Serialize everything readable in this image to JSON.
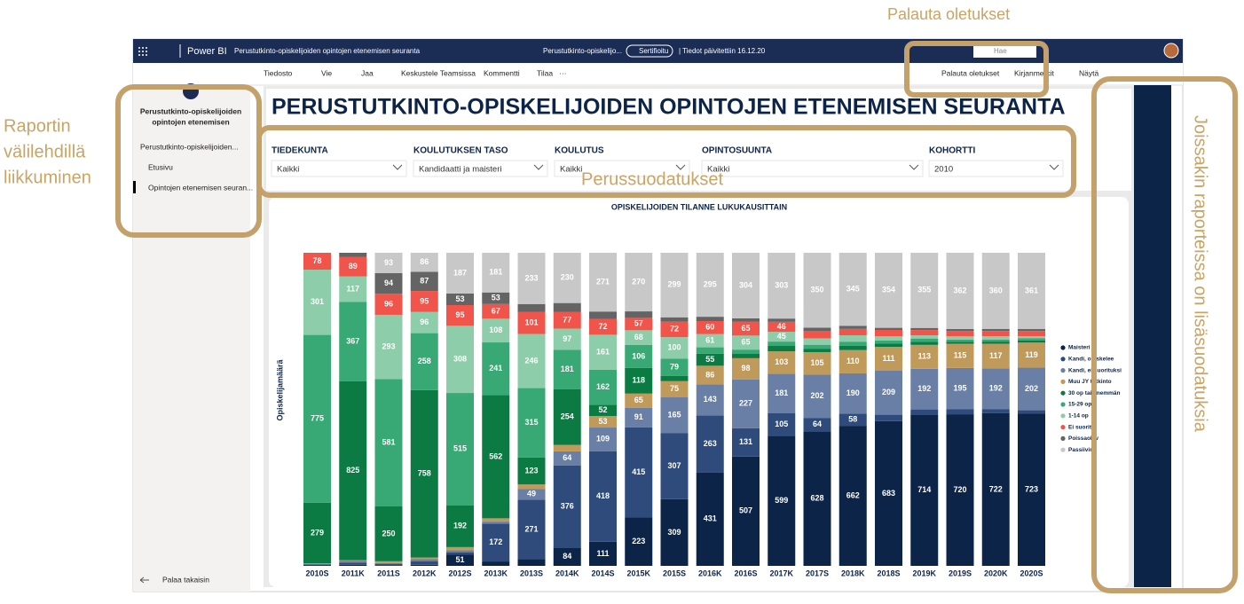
{
  "annotations": {
    "reset": "Palauta oletukset",
    "tabs": [
      "Raportin",
      "välilehdillä",
      "liikkuminen"
    ],
    "filters": "Perussuodatukset",
    "extra": "Joissakin raporteissa on lisäsuodatuksia"
  },
  "topbar": {
    "app": "Power BI",
    "report": "Perustutkinto-opiskelijoiden opintojen etenemisen seuranta",
    "report_short": "Perustutkinto-opiskelijo...",
    "badge": "Sertifioitu",
    "updated": "| Tiedot päivitettiin 16.12.20",
    "search": "Hae"
  },
  "toolbar": {
    "left": [
      "Tiedosto",
      "Vie",
      "Jaa",
      "Keskustele Teamsissa",
      "Kommentti",
      "Tilaa",
      "···"
    ],
    "right": [
      "Palauta oletukset",
      "Kirjanmerkit",
      "Näytä"
    ]
  },
  "nav": {
    "title": [
      "Perustutkinto-opiskelijoiden",
      "opintojen etenemisen"
    ],
    "section": "Perustutkinto-opiskelijoiden...",
    "pages": [
      "Etusivu",
      "Opintojen etenemisen seuran..."
    ],
    "back": "Palaa takaisin"
  },
  "report": {
    "title": "PERUSTUTKINTO-OPISKELIJOIDEN OPINTOJEN ETENEMISEN SEURANTA",
    "filters": [
      {
        "label": "TIEDEKUNTA",
        "value": "Kaikki"
      },
      {
        "label": "KOULUTUKSEN TASO",
        "value": "Kandidaatti ja maisteri"
      },
      {
        "label": "KOULUTUS",
        "value": "Kaikki"
      },
      {
        "label": "OPINTOSUUNTA",
        "value": "Kaikki"
      },
      {
        "label": "KOHORTTI",
        "value": "2010"
      }
    ]
  },
  "chart_data": {
    "type": "stacked-bar",
    "title": "OPISKELIJOIDEN TILANNE LUKUKAUSITTAIN",
    "y_label": "Opiskelijamäärä",
    "categories": [
      "2010S",
      "2011K",
      "2011S",
      "2012K",
      "2012S",
      "2013K",
      "2013S",
      "2014K",
      "2014S",
      "2015K",
      "2015S",
      "2016K",
      "2016S",
      "2017K",
      "2017S",
      "2018K",
      "2018S",
      "2019K",
      "2019S",
      "2020K",
      "2020S"
    ],
    "series": [
      {
        "name": "Maisteri",
        "color": "#0d2449",
        "values": [
          2,
          5,
          3,
          5,
          51,
          20,
          30,
          84,
          111,
          223,
          309,
          431,
          507,
          599,
          628,
          662,
          683,
          714,
          720,
          722,
          723
        ]
      },
      {
        "name": "Kandi, opiskelee",
        "color": "#2f4b7c",
        "values": [
          5,
          10,
          5,
          15,
          10,
          172,
          271,
          376,
          418,
          415,
          307,
          263,
          131,
          105,
          64,
          58,
          30,
          25,
          25,
          20,
          15
        ]
      },
      {
        "name": "Kandi, ei suorituksi",
        "color": "#6a7fa5",
        "values": [
          3,
          8,
          5,
          10,
          10,
          10,
          49,
          64,
          109,
          91,
          165,
          143,
          227,
          181,
          202,
          190,
          209,
          192,
          195,
          192,
          202
        ]
      },
      {
        "name": "Muu JY tutkinto",
        "color": "#c09a5b",
        "values": [
          2,
          3,
          8,
          8,
          15,
          15,
          20,
          30,
          53,
          65,
          75,
          86,
          98,
          103,
          105,
          110,
          111,
          113,
          115,
          117,
          119
        ]
      },
      {
        "name": "30 op tai enemmän",
        "color": "#0b7a43",
        "values": [
          279,
          825,
          250,
          758,
          192,
          562,
          123,
          254,
          52,
          118,
          25,
          55,
          20,
          25,
          15,
          20,
          15,
          15,
          10,
          10,
          10
        ]
      },
      {
        "name": "15-29 op",
        "color": "#38a874",
        "values": [
          775,
          367,
          581,
          258,
          515,
          241,
          315,
          181,
          162,
          106,
          79,
          30,
          20,
          20,
          20,
          20,
          15,
          15,
          10,
          10,
          10
        ]
      },
      {
        "name": "1-14 op",
        "color": "#8dcdaa",
        "values": [
          301,
          117,
          293,
          96,
          308,
          108,
          246,
          97,
          161,
          68,
          100,
          61,
          65,
          45,
          30,
          30,
          20,
          15,
          15,
          15,
          10
        ]
      },
      {
        "name": "Ei suoritu",
        "color": "#f0544a",
        "values": [
          78,
          89,
          96,
          95,
          95,
          67,
          101,
          77,
          72,
          57,
          72,
          60,
          65,
          46,
          35,
          30,
          30,
          25,
          25,
          25,
          25
        ]
      },
      {
        "name": "Poissaolev",
        "color": "#646464",
        "values": [
          0,
          20,
          94,
          87,
          53,
          53,
          35,
          40,
          35,
          30,
          20,
          20,
          15,
          15,
          15,
          15,
          10,
          10,
          10,
          10,
          10
        ]
      },
      {
        "name": "Passiivine",
        "color": "#c8c8c8",
        "values": [
          0,
          0,
          93,
          86,
          187,
          181,
          233,
          230,
          271,
          270,
          299,
          295,
          304,
          303,
          350,
          345,
          354,
          355,
          362,
          360,
          361
        ]
      }
    ]
  }
}
